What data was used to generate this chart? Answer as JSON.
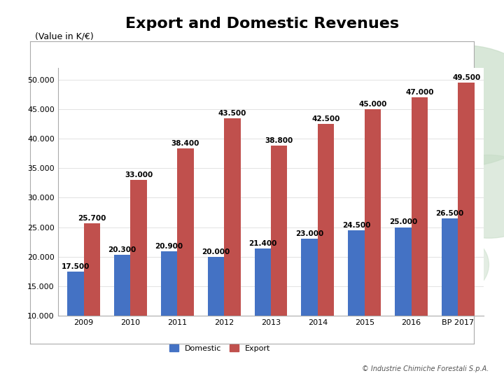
{
  "title": "Export and Domestic Revenues",
  "subtitle": "(Value in K/€)",
  "copyright": "© Industrie Chimiche Forestali S.p.A.",
  "categories": [
    "2009",
    "2010",
    "2011",
    "2012",
    "2013",
    "2014",
    "2015",
    "2016",
    "BP 2017"
  ],
  "domestic": [
    17500,
    20300,
    20900,
    20000,
    21400,
    23000,
    24500,
    25000,
    26500
  ],
  "export": [
    25700,
    33000,
    38400,
    43500,
    38800,
    42500,
    45000,
    47000,
    49500
  ],
  "domestic_labels": [
    "17.500",
    "20.300",
    "20.900",
    "20.000",
    "21.400",
    "23.000",
    "24.500",
    "25.000",
    "26.500"
  ],
  "export_labels": [
    "25.700",
    "33.000",
    "38.400",
    "43.500",
    "38.800",
    "42.500",
    "45.000",
    "47.000",
    "49.500"
  ],
  "domestic_color": "#4472C4",
  "export_color": "#C0504D",
  "ylim": [
    10000,
    52000
  ],
  "yticks": [
    10000,
    15000,
    20000,
    25000,
    30000,
    35000,
    40000,
    45000,
    50000
  ],
  "ytick_labels": [
    "10.000",
    "15.000",
    "20.000",
    "25.000",
    "30.000",
    "35.000",
    "40.000",
    "45.000",
    "50.000"
  ],
  "page_bg": "#ffffff",
  "chart_bg": "#ffffff",
  "circle_color": "#c8ddc8",
  "bar_width": 0.35,
  "title_fontsize": 16,
  "subtitle_fontsize": 9,
  "label_fontsize": 7.5,
  "tick_fontsize": 8,
  "legend_fontsize": 8,
  "copyright_fontsize": 7
}
